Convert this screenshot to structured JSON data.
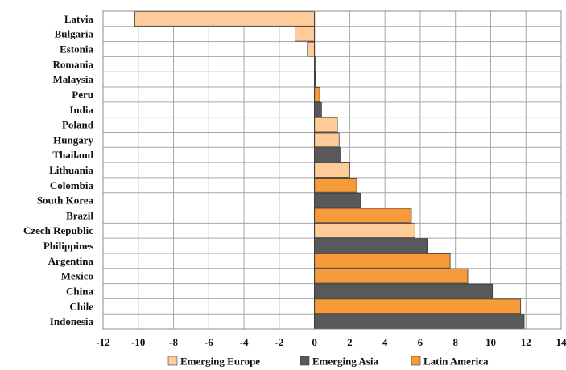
{
  "chart_data": {
    "type": "bar",
    "orientation": "horizontal",
    "categories": [
      "Latvia",
      "Bulgaria",
      "Estonia",
      "Romania",
      "Malaysia",
      "Peru",
      "India",
      "Poland",
      "Hungary",
      "Thailand",
      "Lithuania",
      "Colombia",
      "South Korea",
      "Brazil",
      "Czech Republic",
      "Philippines",
      "Argentina",
      "Mexico",
      "China",
      "Chile",
      "Indonesia"
    ],
    "values": [
      -10.2,
      -1.1,
      -0.4,
      0.05,
      0.05,
      0.3,
      0.4,
      1.3,
      1.4,
      1.5,
      2.0,
      2.4,
      2.6,
      5.5,
      5.7,
      6.4,
      7.7,
      8.7,
      10.1,
      11.7,
      11.9
    ],
    "groups": [
      "Emerging Europe",
      "Emerging Europe",
      "Emerging Europe",
      "Emerging Europe",
      "Emerging Asia",
      "Latin America",
      "Emerging Asia",
      "Emerging Europe",
      "Emerging Europe",
      "Emerging Asia",
      "Emerging Europe",
      "Latin America",
      "Emerging Asia",
      "Latin America",
      "Emerging Europe",
      "Emerging Asia",
      "Latin America",
      "Latin America",
      "Emerging Asia",
      "Latin America",
      "Emerging Asia"
    ],
    "series": [
      {
        "name": "Emerging Europe",
        "color": "#FFCC99"
      },
      {
        "name": "Emerging Asia",
        "color": "#595959"
      },
      {
        "name": "Latin America",
        "color": "#F79A3A"
      }
    ],
    "xlim": [
      -12,
      14
    ],
    "xticks": [
      -12,
      -10,
      -8,
      -6,
      -4,
      -2,
      0,
      2,
      4,
      6,
      8,
      10,
      12,
      14
    ],
    "title": "",
    "xlabel": "",
    "ylabel": "",
    "grid": true,
    "legend_position": "bottom"
  }
}
